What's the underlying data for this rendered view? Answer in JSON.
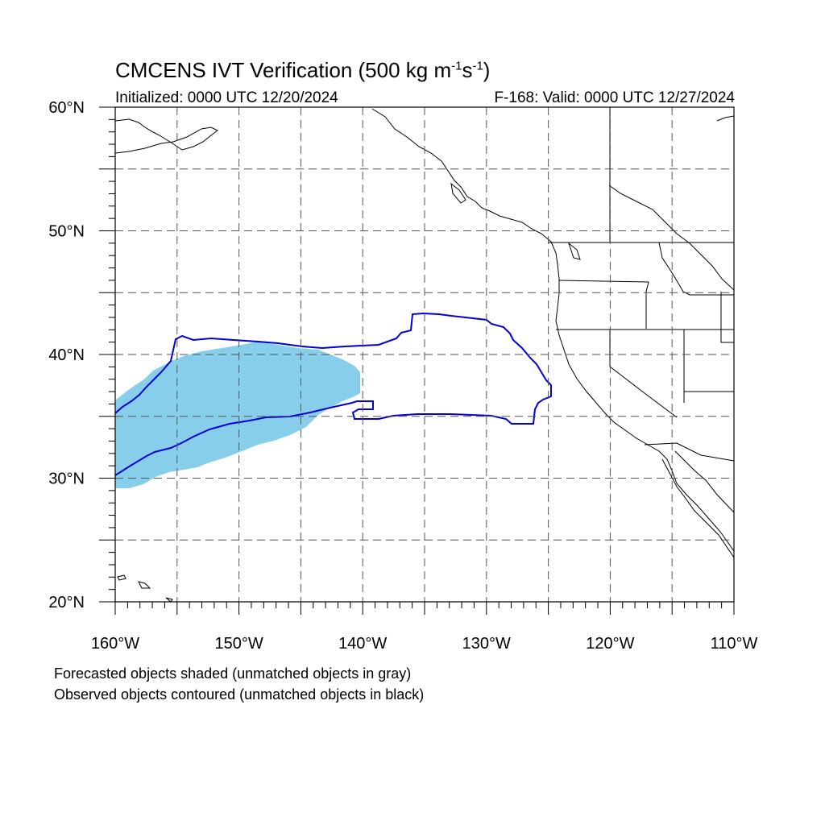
{
  "header": {
    "title_prefix": "CMCENS IVT Verification (500 kg m",
    "title_exp1": "-1",
    "title_mid": "s",
    "title_exp2": "-1",
    "title_suffix": ")",
    "initialized": "Initialized: 0000 UTC 12/20/2024",
    "valid": "F-168: Valid: 0000 UTC 12/27/2024"
  },
  "axes": {
    "lon_range": [
      -160,
      -110
    ],
    "lat_range": [
      20,
      60
    ],
    "lat_labels": [
      "20°N",
      "30°N",
      "40°N",
      "50°N",
      "60°N"
    ],
    "lon_labels": [
      "160°W",
      "150°W",
      "140°W",
      "130°W",
      "120°W",
      "110°W"
    ],
    "grid": "dashed every 5°"
  },
  "legend": {
    "line1": "Forecasted objects shaded (unmatched objects in gray)",
    "line2": "Observed objects contoured (unmatched objects in black)"
  },
  "colors": {
    "forecast_fill": "#87ceeb",
    "observed_contour": "#0000dd",
    "coast": "#000000",
    "grid": "#555555"
  }
}
